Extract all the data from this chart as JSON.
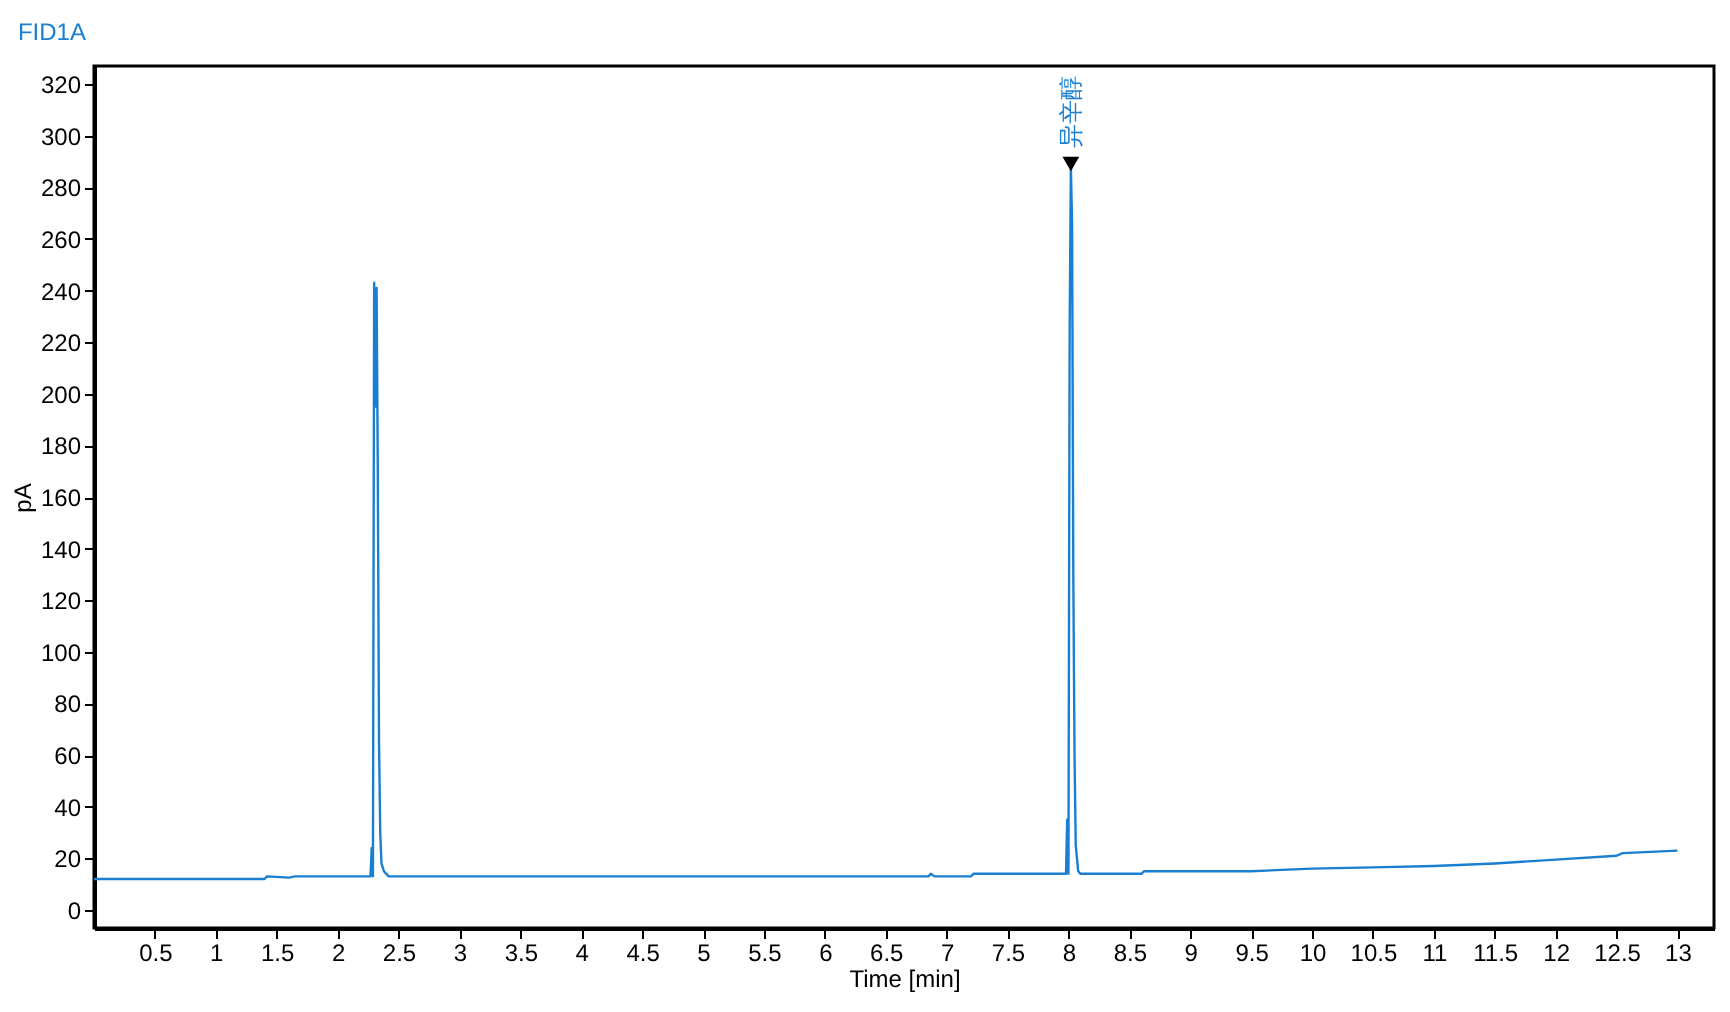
{
  "chart_data": {
    "type": "line",
    "title": "FID1A",
    "xlabel": "Time [min]",
    "ylabel": "pA",
    "xlim": [
      0,
      13.3
    ],
    "ylim": [
      -7,
      327
    ],
    "xticks": [
      0.5,
      1,
      1.5,
      2,
      2.5,
      3,
      3.5,
      4,
      4.5,
      5,
      5.5,
      6,
      6.5,
      7,
      7.5,
      8,
      8.5,
      9,
      9.5,
      10,
      10.5,
      11,
      11.5,
      12,
      12.5,
      13
    ],
    "yticks": [
      0,
      20,
      40,
      60,
      80,
      100,
      120,
      140,
      160,
      180,
      200,
      220,
      240,
      260,
      280,
      300,
      320
    ],
    "grid": false,
    "legend": false,
    "marker": "none",
    "line_style": "solid",
    "annotations": [
      {
        "text": "异辛醇",
        "x": 8.02,
        "y": 289
      }
    ],
    "series": [
      {
        "color": "#1a7fd0",
        "x": [
          0,
          1.4,
          1.42,
          1.6,
          1.65,
          2.27,
          2.28,
          2.29,
          2.3,
          2.31,
          2.32,
          2.33,
          2.34,
          2.35,
          2.36,
          2.38,
          2.42,
          6.85,
          6.87,
          6.9,
          7.2,
          7.22,
          7.98,
          7.99,
          8,
          8.01,
          8.02,
          8.03,
          8.04,
          8.05,
          8.06,
          8.08,
          8.1,
          8.6,
          8.62,
          9.5,
          10,
          10.5,
          11,
          11.5,
          12,
          12.5,
          12.55,
          13
        ],
        "values": [
          12,
          12,
          13,
          12.5,
          13,
          13,
          24,
          13,
          243,
          195,
          241,
          170,
          65,
          30,
          18,
          15,
          13,
          13,
          14,
          13,
          13,
          14,
          14,
          35,
          14,
          225,
          288,
          265,
          130,
          60,
          25,
          15,
          14,
          14,
          15,
          15,
          16,
          16.5,
          17,
          18,
          19.5,
          21,
          22,
          23
        ]
      }
    ]
  }
}
